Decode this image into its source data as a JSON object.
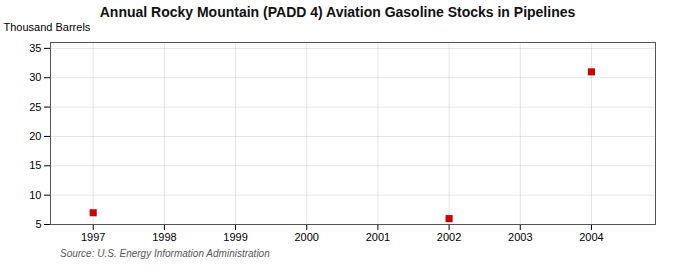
{
  "chart_data": {
    "type": "scatter",
    "title": "Annual Rocky Mountain (PADD 4) Aviation Gasoline Stocks in Pipelines",
    "ylabel": "Thousand Barrels",
    "source": "Source: U.S. Energy Information Administration",
    "x": [
      1997,
      2002,
      2004
    ],
    "values": [
      7,
      6,
      31
    ],
    "color": "#cc0000",
    "marker": "square",
    "xlim": [
      1996.4,
      2004.9
    ],
    "ylim": [
      5,
      36
    ],
    "xticks": [
      1997,
      1998,
      1999,
      2000,
      2001,
      2002,
      2003,
      2004
    ],
    "yticks": [
      5,
      10,
      15,
      20,
      25,
      30,
      35
    ],
    "grid": true
  }
}
